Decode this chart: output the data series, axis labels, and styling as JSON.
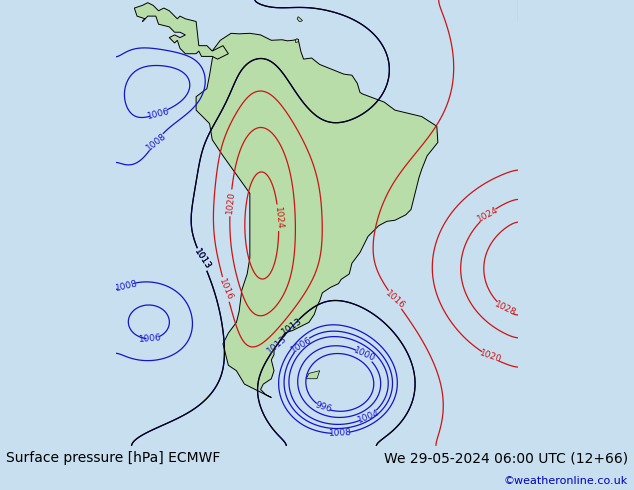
{
  "title_left": "Surface pressure [hPa] ECMWF",
  "title_right": "We 29-05-2024 06:00 UTC (12+66)",
  "credit": "©weatheronline.co.uk",
  "bg_color": "#c8dff0",
  "land_color": "#b8dda8",
  "contour_blue_color": "#1414cc",
  "contour_red_color": "#cc1414",
  "contour_black_color": "#000000",
  "text_color": "#000000",
  "credit_color": "#0000bb",
  "font_size_title": 10,
  "font_size_credit": 8,
  "lon_min": -95,
  "lon_max": -20,
  "lat_min": -65,
  "lat_max": 18
}
